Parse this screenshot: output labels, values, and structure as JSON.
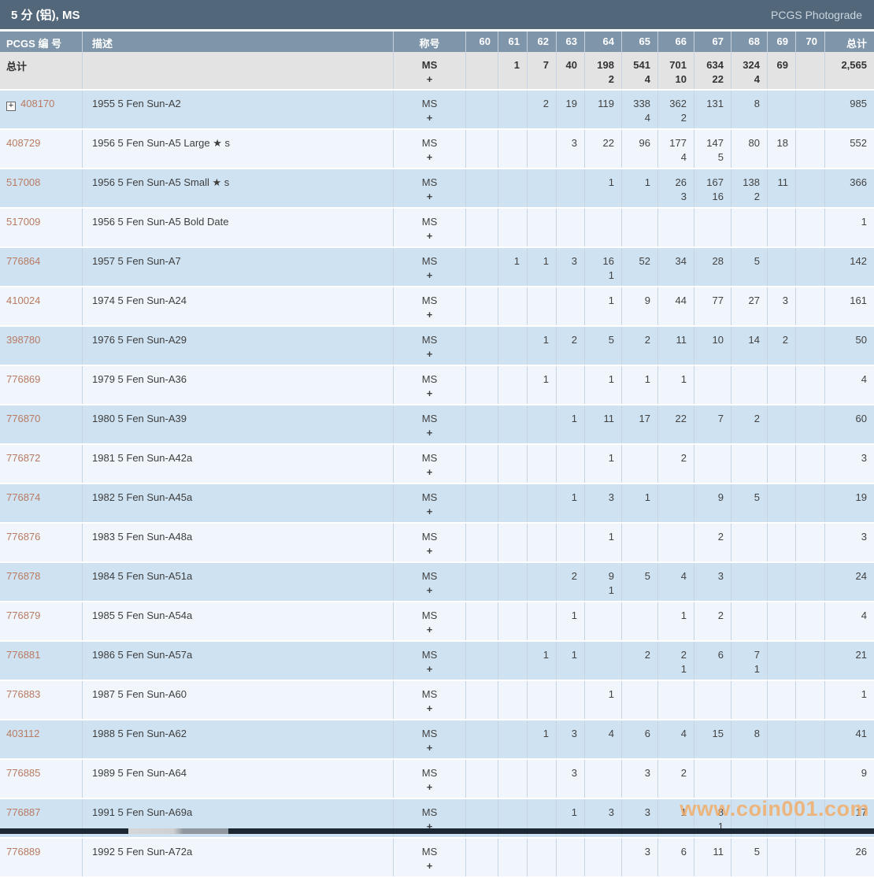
{
  "titlebar": {
    "title": "5 分 (铝), MS",
    "right_link": "PCGS Photograde"
  },
  "watermark": "www.coin001.com",
  "colors": {
    "titlebar-bg": "#52677a",
    "titlebar-link": "#ccd7e0",
    "header-bg": "#7e95aa",
    "totals-bg": "#e3e3e3",
    "row-blue": "#cfe2f1",
    "row-white": "#f0f6fb",
    "grid-line": "#c6d4e2",
    "link-color": "#b97a62",
    "watermark-color": "#f6a95f",
    "scrollbar-track": "#1b2733"
  },
  "table": {
    "columns": {
      "pcgs": "PCGS 编 号",
      "desc": "描述",
      "designation": "称号",
      "grades": [
        "60",
        "61",
        "62",
        "63",
        "64",
        "65",
        "66",
        "67",
        "68",
        "69",
        "70"
      ],
      "total": "总计"
    },
    "designation": {
      "line1": "MS",
      "line2": "+"
    },
    "totals_row": {
      "label": "总计",
      "grades": [
        "",
        "1",
        "7",
        "40",
        "198|2",
        "541|4",
        "701|10",
        "634|22",
        "324|4",
        "69",
        ""
      ],
      "total": "2,565"
    },
    "rows": [
      {
        "pcgs": "408170",
        "expandable": true,
        "desc": "1955 5 Fen Sun-A2",
        "grades": [
          "",
          "",
          "2",
          "19",
          "119",
          "338|4",
          "362|2",
          "131",
          "8",
          "",
          ""
        ],
        "total": "985"
      },
      {
        "pcgs": "408729",
        "desc": "1956 5 Fen Sun-A5 Large ★ s",
        "grades": [
          "",
          "",
          "",
          "3",
          "22",
          "96",
          "177|4",
          "147|5",
          "80",
          "18",
          ""
        ],
        "total": "552"
      },
      {
        "pcgs": "517008",
        "desc": "1956 5 Fen Sun-A5 Small ★ s",
        "grades": [
          "",
          "",
          "",
          "",
          "1",
          "1",
          "26|3",
          "167|16",
          "138|2",
          "11",
          ""
        ],
        "total": "366"
      },
      {
        "pcgs": "517009",
        "desc": "1956 5 Fen Sun-A5 Bold Date",
        "grades": [
          "",
          "",
          "",
          "",
          "",
          "",
          "",
          "",
          "",
          "",
          ""
        ],
        "total": "1"
      },
      {
        "pcgs": "776864",
        "desc": "1957 5 Fen Sun-A7",
        "grades": [
          "",
          "1",
          "1",
          "3",
          "16|1",
          "52",
          "34",
          "28",
          "5",
          "",
          ""
        ],
        "total": "142"
      },
      {
        "pcgs": "410024",
        "desc": "1974 5 Fen Sun-A24",
        "grades": [
          "",
          "",
          "",
          "",
          "1",
          "9",
          "44",
          "77",
          "27",
          "3",
          ""
        ],
        "total": "161"
      },
      {
        "pcgs": "398780",
        "desc": "1976 5 Fen Sun-A29",
        "grades": [
          "",
          "",
          "1",
          "2",
          "5",
          "2",
          "11",
          "10",
          "14",
          "2",
          ""
        ],
        "total": "50"
      },
      {
        "pcgs": "776869",
        "desc": "1979 5 Fen Sun-A36",
        "grades": [
          "",
          "",
          "1",
          "",
          "1",
          "1",
          "1",
          "",
          "",
          "",
          ""
        ],
        "total": "4"
      },
      {
        "pcgs": "776870",
        "desc": "1980 5 Fen Sun-A39",
        "grades": [
          "",
          "",
          "",
          "1",
          "11",
          "17",
          "22",
          "7",
          "2",
          "",
          ""
        ],
        "total": "60"
      },
      {
        "pcgs": "776872",
        "desc": "1981 5 Fen Sun-A42a",
        "grades": [
          "",
          "",
          "",
          "",
          "1",
          "",
          "2",
          "",
          "",
          "",
          ""
        ],
        "total": "3"
      },
      {
        "pcgs": "776874",
        "desc": "1982 5 Fen Sun-A45a",
        "grades": [
          "",
          "",
          "",
          "1",
          "3",
          "1",
          "",
          "9",
          "5",
          "",
          ""
        ],
        "total": "19"
      },
      {
        "pcgs": "776876",
        "desc": "1983 5 Fen Sun-A48a",
        "grades": [
          "",
          "",
          "",
          "",
          "1",
          "",
          "",
          "2",
          "",
          "",
          ""
        ],
        "total": "3"
      },
      {
        "pcgs": "776878",
        "desc": "1984 5 Fen Sun-A51a",
        "grades": [
          "",
          "",
          "",
          "2",
          "9|1",
          "5",
          "4",
          "3",
          "",
          "",
          ""
        ],
        "total": "24"
      },
      {
        "pcgs": "776879",
        "desc": "1985 5 Fen Sun-A54a",
        "grades": [
          "",
          "",
          "",
          "1",
          "",
          "",
          "1",
          "2",
          "",
          "",
          ""
        ],
        "total": "4"
      },
      {
        "pcgs": "776881",
        "desc": "1986 5 Fen Sun-A57a",
        "grades": [
          "",
          "",
          "1",
          "1",
          "",
          "2",
          "2|1",
          "6",
          "7|1",
          "",
          ""
        ],
        "total": "21"
      },
      {
        "pcgs": "776883",
        "desc": "1987 5 Fen Sun-A60",
        "grades": [
          "",
          "",
          "",
          "",
          "1",
          "",
          "",
          "",
          "",
          "",
          ""
        ],
        "total": "1"
      },
      {
        "pcgs": "403112",
        "desc": "1988 5 Fen Sun-A62",
        "grades": [
          "",
          "",
          "1",
          "3",
          "4",
          "6",
          "4",
          "15",
          "8",
          "",
          ""
        ],
        "total": "41"
      },
      {
        "pcgs": "776885",
        "desc": "1989 5 Fen Sun-A64",
        "grades": [
          "",
          "",
          "",
          "3",
          "",
          "3",
          "2",
          "",
          "",
          "",
          ""
        ],
        "total": "9"
      },
      {
        "pcgs": "776887",
        "desc": "1991 5 Fen Sun-A69a",
        "grades": [
          "",
          "",
          "",
          "1",
          "3",
          "3",
          "1",
          "8|1",
          "",
          "",
          ""
        ],
        "total": "17"
      },
      {
        "pcgs": "776889",
        "desc": "1992 5 Fen Sun-A72a",
        "grades": [
          "",
          "",
          "",
          "",
          "",
          "3",
          "6",
          "11",
          "5",
          "",
          ""
        ],
        "total": "26"
      }
    ]
  }
}
